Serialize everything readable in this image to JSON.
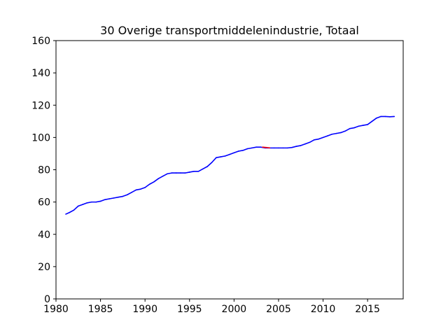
{
  "chart_data": {
    "type": "line",
    "title": "30 Overige transportmiddelenindustrie, Totaal",
    "xlabel": "",
    "ylabel": "",
    "xlim": [
      1980,
      2019
    ],
    "ylim": [
      0,
      160
    ],
    "x_ticks": [
      1980,
      1985,
      1990,
      1995,
      2000,
      2005,
      2010,
      2015
    ],
    "y_ticks": [
      0,
      20,
      40,
      60,
      80,
      100,
      120,
      140,
      160
    ],
    "grid": false,
    "colors": {
      "main_line": "#0000ff",
      "highlight": "#ff0000",
      "axes": "#000000",
      "background": "#ffffff"
    },
    "series": [
      {
        "color": "#0000ff",
        "x": [
          1981.1,
          1981.5,
          1982.0,
          1982.5,
          1983.0,
          1983.5,
          1984.0,
          1984.5,
          1985.0,
          1985.5,
          1986.0,
          1986.5,
          1987.0,
          1987.5,
          1988.0,
          1988.5,
          1989.0,
          1989.5,
          1990.0,
          1990.5,
          1991.0,
          1991.5,
          1992.0,
          1992.5,
          1993.0,
          1993.5,
          1994.0,
          1994.5,
          1995.0,
          1995.5,
          1996.0,
          1996.5,
          1997.0,
          1997.5,
          1998.0,
          1998.5,
          1999.0,
          1999.5,
          2000.0,
          2000.5,
          2001.0,
          2001.5,
          2002.0,
          2002.5,
          2003.0,
          2003.5,
          2004.0,
          2004.5,
          2005.0,
          2005.5,
          2006.0,
          2006.5,
          2007.0,
          2007.5,
          2008.0,
          2008.5,
          2009.0,
          2009.5,
          2010.0,
          2010.5,
          2011.0,
          2011.5,
          2012.0,
          2012.5,
          2013.0,
          2013.5,
          2014.0,
          2014.5,
          2015.0,
          2015.5,
          2016.0,
          2016.5,
          2017.0,
          2017.5,
          2018.0
        ],
        "y": [
          52.5,
          53.5,
          55.0,
          57.5,
          58.5,
          59.5,
          60.0,
          60.0,
          60.5,
          61.5,
          62.0,
          62.5,
          63.0,
          63.5,
          64.5,
          66.0,
          67.5,
          68.0,
          69.0,
          71.0,
          72.5,
          74.5,
          76.0,
          77.5,
          78.0,
          78.0,
          78.0,
          78.0,
          78.5,
          79.0,
          79.0,
          80.5,
          82.0,
          84.5,
          87.5,
          88.0,
          88.5,
          89.5,
          90.5,
          91.5,
          92.0,
          93.0,
          93.5,
          94.0,
          94.0,
          93.5,
          93.5,
          93.5,
          93.5,
          93.5,
          93.5,
          93.8,
          94.5,
          95.0,
          96.0,
          97.0,
          98.5,
          99.0,
          100.0,
          101.0,
          102.0,
          102.5,
          103.0,
          104.0,
          105.5,
          106.0,
          107.0,
          107.5,
          108.0,
          110.0,
          112.0,
          113.0,
          113.0,
          112.8,
          113.0
        ]
      },
      {
        "color": "#ff0000",
        "x": [
          2003.2,
          2003.6,
          2004.0
        ],
        "y": [
          94.0,
          93.8,
          93.6
        ]
      }
    ]
  }
}
